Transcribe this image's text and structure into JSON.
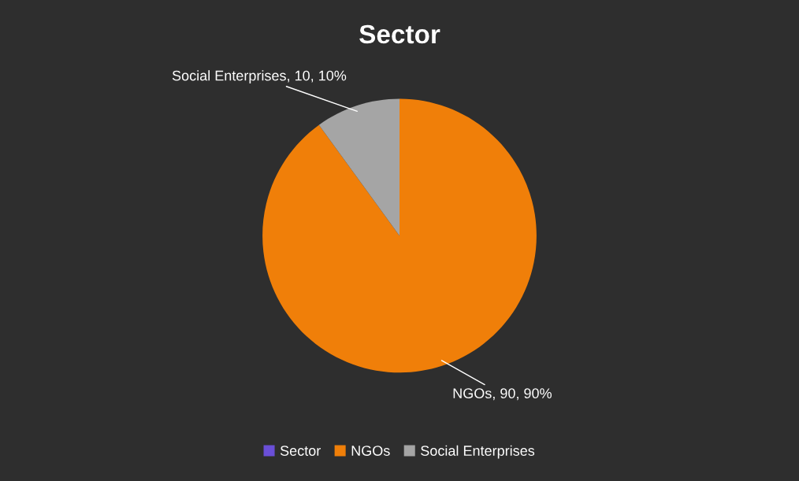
{
  "chart_data": {
    "type": "pie",
    "title": "Sector",
    "categories": [
      "Sector",
      "NGOs",
      "Social Enterprises"
    ],
    "values": [
      0,
      90,
      10
    ],
    "colors": [
      "#6a4fd8",
      "#f07f09",
      "#a5a5a5"
    ],
    "value_labels": [
      null,
      "NGOs, 90, 90%",
      "Social Enterprises, 10, 10%"
    ],
    "legend": "bottom"
  }
}
